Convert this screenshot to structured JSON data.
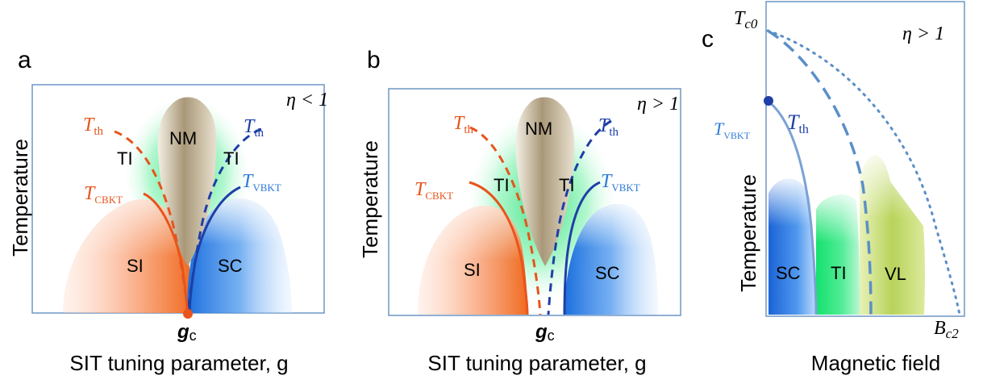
{
  "panels": [
    {
      "letter": "a",
      "condition": "η < 1",
      "ylabel": "Temperature",
      "xlabel": "SIT tuning parameter, g",
      "critical_point": "g",
      "critical_sub": "c",
      "labels": {
        "th_left": "T",
        "th_left_sub": "th",
        "th_right": "T",
        "th_right_sub": "th",
        "bkt_left": "T",
        "bkt_left_sub": "CBKT",
        "bkt_right": "T",
        "bkt_right_sub": "VBKT",
        "nm": "NM",
        "ti_left": "TI",
        "ti_right": "TI",
        "si": "SI",
        "sc": "SC"
      }
    },
    {
      "letter": "b",
      "condition": "η > 1",
      "ylabel": "Temperature",
      "xlabel": "SIT tuning parameter, g",
      "critical_point": "g",
      "critical_sub": "c",
      "labels": {
        "th_left": "T",
        "th_left_sub": "th",
        "th_right": "T",
        "th_right_sub": "th",
        "bkt_left": "T",
        "bkt_left_sub": "CBKT",
        "bkt_right": "T",
        "bkt_right_sub": "VBKT",
        "nm": "NM",
        "ti_left": "TI",
        "ti_right": "TI",
        "si": "SI",
        "sc": "SC"
      }
    },
    {
      "letter": "c",
      "condition": "η > 1",
      "ylabel": "Temperature",
      "xlabel": "Magnetic field",
      "tc0": "T",
      "tc0_sub": "c0",
      "bc2": "B",
      "bc2_sub": "c2",
      "labels": {
        "vbkt": "T",
        "vbkt_sub": "VBKT",
        "th": "T",
        "th_sub": "th",
        "sc": "SC",
        "ti": "TI",
        "vl": "VL"
      }
    }
  ],
  "colors": {
    "orange": "#e8541c",
    "blue": "#1f3fa6",
    "light_blue": "#2e7ad8",
    "green": "#33d977",
    "tan": "#b9a98a",
    "yellowgreen": "#b7d45a",
    "frame": "#6e95c4",
    "dots": "#5b8fc7"
  }
}
